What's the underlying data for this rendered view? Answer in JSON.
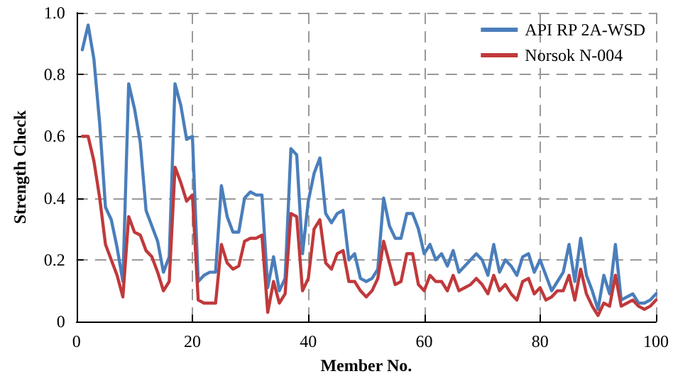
{
  "chart_data": {
    "type": "line",
    "xlabel": "Member No.",
    "ylabel": "Strength Check",
    "x": [
      1,
      2,
      3,
      4,
      5,
      6,
      7,
      8,
      9,
      10,
      11,
      12,
      13,
      14,
      15,
      16,
      17,
      18,
      19,
      20,
      21,
      22,
      23,
      24,
      25,
      26,
      27,
      28,
      29,
      30,
      31,
      32,
      33,
      34,
      35,
      36,
      37,
      38,
      39,
      40,
      41,
      42,
      43,
      44,
      45,
      46,
      47,
      48,
      49,
      50,
      51,
      52,
      53,
      54,
      55,
      56,
      57,
      58,
      59,
      60,
      61,
      62,
      63,
      64,
      65,
      66,
      67,
      68,
      69,
      70,
      71,
      72,
      73,
      74,
      75,
      76,
      77,
      78,
      79,
      80,
      81,
      82,
      83,
      84,
      85,
      86,
      87,
      88,
      89,
      90,
      91,
      92,
      93,
      94,
      95,
      96,
      97,
      98,
      99,
      100
    ],
    "series": [
      {
        "name": "API RP 2A-WSD",
        "color": "#4a7ebb",
        "values": [
          0.88,
          0.96,
          0.85,
          0.64,
          0.37,
          0.33,
          0.24,
          0.13,
          0.77,
          0.69,
          0.58,
          0.36,
          0.31,
          0.26,
          0.16,
          0.21,
          0.77,
          0.7,
          0.59,
          0.6,
          0.13,
          0.15,
          0.16,
          0.16,
          0.44,
          0.34,
          0.29,
          0.29,
          0.4,
          0.42,
          0.41,
          0.41,
          0.11,
          0.21,
          0.1,
          0.14,
          0.56,
          0.54,
          0.22,
          0.39,
          0.48,
          0.53,
          0.35,
          0.32,
          0.35,
          0.36,
          0.2,
          0.22,
          0.14,
          0.13,
          0.14,
          0.17,
          0.4,
          0.31,
          0.27,
          0.27,
          0.35,
          0.35,
          0.3,
          0.22,
          0.25,
          0.2,
          0.22,
          0.18,
          0.23,
          0.16,
          0.18,
          0.2,
          0.22,
          0.2,
          0.15,
          0.25,
          0.16,
          0.2,
          0.18,
          0.15,
          0.21,
          0.22,
          0.16,
          0.2,
          0.15,
          0.1,
          0.13,
          0.16,
          0.25,
          0.13,
          0.27,
          0.15,
          0.1,
          0.04,
          0.15,
          0.09,
          0.25,
          0.07,
          0.08,
          0.09,
          0.06,
          0.06,
          0.07,
          0.09
        ]
      },
      {
        "name": "Norsok N-004",
        "color": "#c0393b",
        "values": [
          0.6,
          0.6,
          0.52,
          0.4,
          0.25,
          0.2,
          0.15,
          0.08,
          0.34,
          0.29,
          0.28,
          0.23,
          0.21,
          0.16,
          0.1,
          0.13,
          0.5,
          0.45,
          0.39,
          0.41,
          0.07,
          0.06,
          0.06,
          0.06,
          0.25,
          0.19,
          0.17,
          0.18,
          0.26,
          0.27,
          0.27,
          0.28,
          0.03,
          0.13,
          0.06,
          0.09,
          0.35,
          0.34,
          0.1,
          0.14,
          0.3,
          0.33,
          0.19,
          0.17,
          0.22,
          0.23,
          0.13,
          0.13,
          0.1,
          0.08,
          0.1,
          0.14,
          0.26,
          0.19,
          0.12,
          0.13,
          0.22,
          0.22,
          0.12,
          0.1,
          0.15,
          0.13,
          0.13,
          0.1,
          0.15,
          0.1,
          0.11,
          0.12,
          0.14,
          0.12,
          0.09,
          0.15,
          0.1,
          0.12,
          0.09,
          0.07,
          0.13,
          0.14,
          0.09,
          0.11,
          0.07,
          0.08,
          0.1,
          0.1,
          0.15,
          0.07,
          0.17,
          0.09,
          0.05,
          0.02,
          0.06,
          0.05,
          0.15,
          0.05,
          0.06,
          0.07,
          0.05,
          0.04,
          0.05,
          0.07
        ]
      }
    ],
    "xlim": [
      0,
      100
    ],
    "xticks": [
      0,
      20,
      40,
      60,
      80,
      100
    ],
    "ylim": [
      0,
      1.0
    ],
    "yticks": [
      0,
      {
        "value": 0.2,
        "label": "0.2"
      },
      {
        "value": 0.4,
        "label": "0.4"
      },
      {
        "value": 0.6,
        "label": "0.6"
      },
      {
        "value": 0.8,
        "label": "0.8"
      },
      {
        "value": 1.0,
        "label": "1.0"
      }
    ],
    "grid": true,
    "legend": "top right",
    "marker": "none",
    "line_style": "solid"
  }
}
